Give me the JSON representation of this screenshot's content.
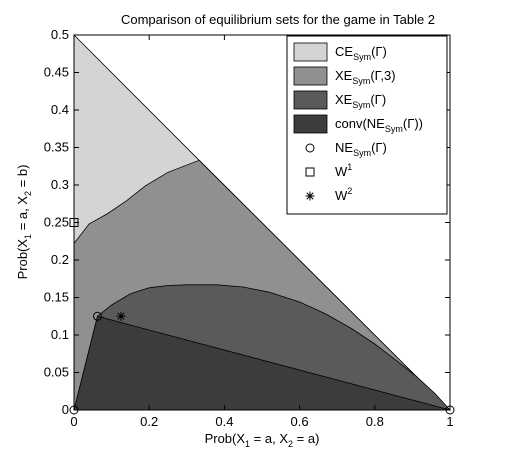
{
  "chart_data": {
    "type": "area",
    "title": "Comparison of equilibrium sets for the game in Table 2",
    "xlabel": {
      "base": "Prob(X",
      "sub1": "1",
      "mid": " = a, X",
      "sub2": "2",
      "tail": " = a)"
    },
    "ylabel": {
      "base": "Prob(X",
      "sub1": "1",
      "mid": " = a, X",
      "sub2": "2",
      "tail": " = b)"
    },
    "xlim": [
      0,
      1
    ],
    "ylim": [
      0,
      0.5
    ],
    "xticks": [
      0,
      0.2,
      0.4,
      0.6,
      0.8,
      1
    ],
    "xtick_labels": [
      "0",
      "0.2",
      "0.4",
      "0.6",
      "0.8",
      "1"
    ],
    "yticks": [
      0,
      0.05,
      0.1,
      0.15,
      0.2,
      0.25,
      0.3,
      0.35,
      0.4,
      0.45,
      0.5
    ],
    "ytick_labels": [
      "0",
      "0.05",
      "0.1",
      "0.15",
      "0.2",
      "0.25",
      "0.3",
      "0.35",
      "0.4",
      "0.45",
      "0.5"
    ],
    "grid": false,
    "legend_position": "top-right",
    "regions": [
      {
        "id": "ce",
        "color": "#d4d4d4",
        "points": [
          [
            0,
            0.5
          ],
          [
            0.333,
            0.333
          ],
          [
            1,
            0
          ],
          [
            0,
            0
          ]
        ]
      },
      {
        "id": "xe3",
        "color": "#909090",
        "points": [
          [
            0,
            0.222
          ],
          [
            0.04,
            0.248
          ],
          [
            0.09,
            0.262
          ],
          [
            0.14,
            0.279
          ],
          [
            0.19,
            0.299
          ],
          [
            0.25,
            0.317
          ],
          [
            0.333,
            0.333
          ],
          [
            1,
            0
          ],
          [
            0,
            0
          ]
        ]
      },
      {
        "id": "xe",
        "color": "#5a5a5a",
        "points": [
          [
            0.0625,
            0.125
          ],
          [
            0.1,
            0.14
          ],
          [
            0.15,
            0.155
          ],
          [
            0.2,
            0.163
          ],
          [
            0.25,
            0.166
          ],
          [
            0.3,
            0.167
          ],
          [
            0.38,
            0.167
          ],
          [
            0.45,
            0.164
          ],
          [
            0.52,
            0.157
          ],
          [
            0.6,
            0.144
          ],
          [
            0.67,
            0.128
          ],
          [
            0.74,
            0.108
          ],
          [
            0.8,
            0.088
          ],
          [
            0.86,
            0.065
          ],
          [
            0.91,
            0.045
          ],
          [
            0.96,
            0.022
          ],
          [
            1,
            0
          ],
          [
            0,
            0
          ]
        ]
      },
      {
        "id": "conv_ne",
        "color": "#3c3c3c",
        "points": [
          [
            0,
            0
          ],
          [
            0.0625,
            0.125
          ],
          [
            1,
            0
          ]
        ]
      }
    ],
    "ne_points": [
      [
        0,
        0
      ],
      [
        0.0625,
        0.125
      ],
      [
        1,
        0
      ]
    ],
    "w1_point": [
      0,
      0.25
    ],
    "w2_point": [
      0.125,
      0.125
    ],
    "legend": [
      {
        "marker": "patch",
        "color": "#d4d4d4",
        "base": "CE",
        "sub": "Sym",
        "tail": "(Γ)"
      },
      {
        "marker": "patch",
        "color": "#909090",
        "base": "XE",
        "sub": "Sym",
        "tail": "(Γ,3)"
      },
      {
        "marker": "patch",
        "color": "#5a5a5a",
        "base": "XE",
        "sub": "Sym",
        "tail": "(Γ)"
      },
      {
        "marker": "patch",
        "color": "#3c3c3c",
        "base": "conv(NE",
        "sub": "Sym",
        "tail": "(Γ))"
      },
      {
        "marker": "circle",
        "base": "NE",
        "sub": "Sym",
        "tail": "(Γ)"
      },
      {
        "marker": "square",
        "base": "W",
        "sup": "1"
      },
      {
        "marker": "star",
        "base": "W",
        "sup": "2"
      }
    ]
  }
}
